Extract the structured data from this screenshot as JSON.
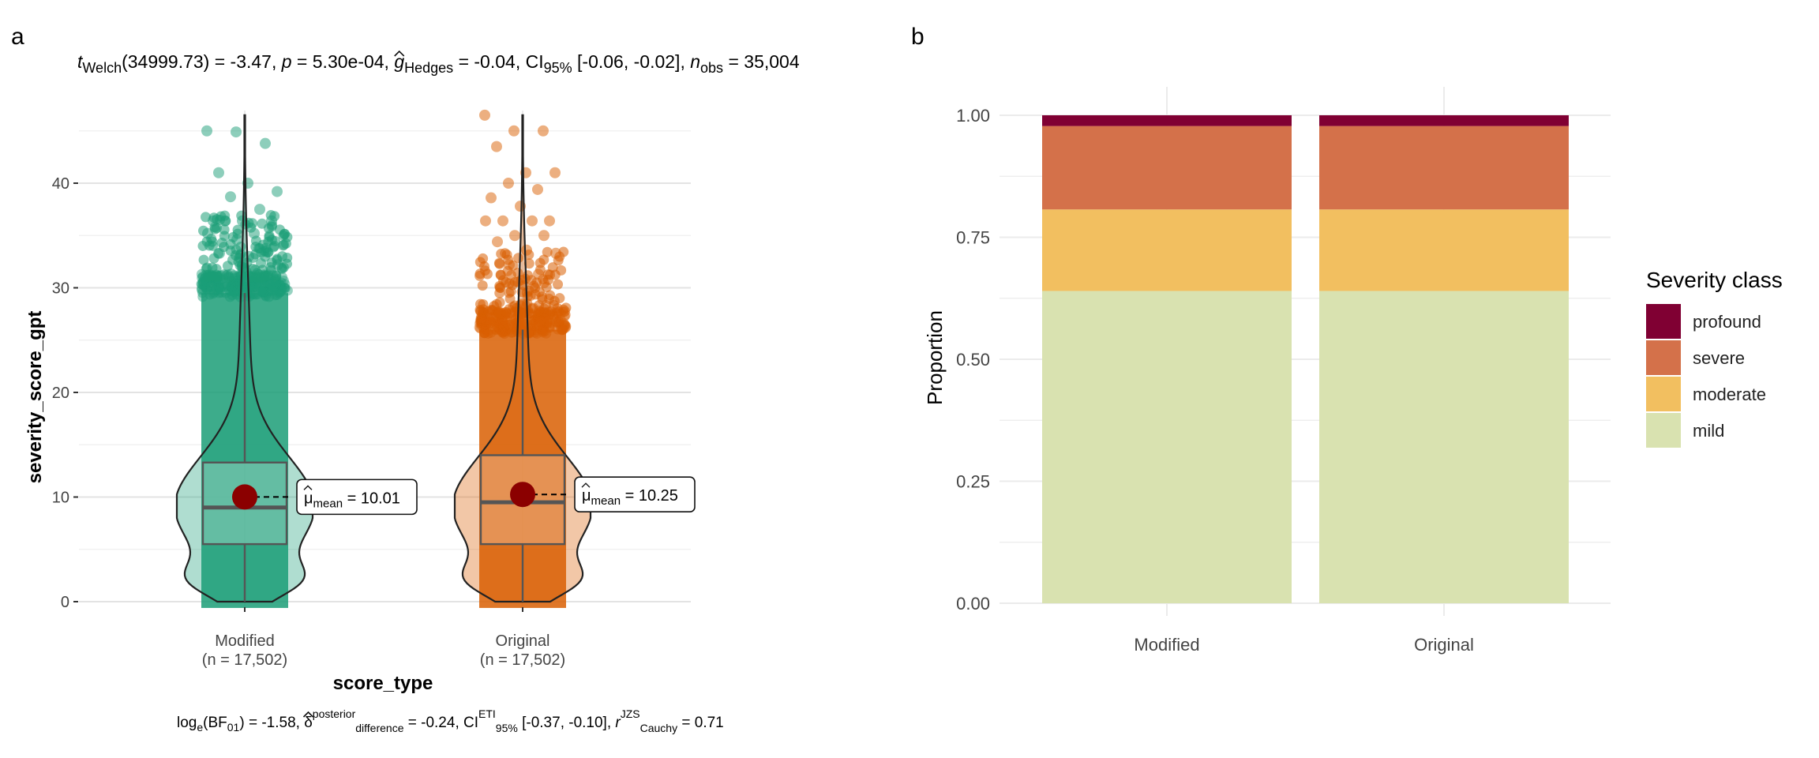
{
  "panel_a": {
    "letter": "a",
    "subtitle": {
      "t_label": "t",
      "t_sub": "Welch",
      "t_rest": "(34999.73) = -3.47, ",
      "p_label": "p",
      "p_rest": " = 5.30e-04, ",
      "g_label": "g",
      "g_sub": "Hedges",
      "g_rest": " = -0.04, CI",
      "ci_sub": "95%",
      "ci_rest": " [-0.06, -0.02], ",
      "n_label": "n",
      "n_sub": "obs",
      "n_rest": " = 35,004"
    },
    "caption": {
      "log_label": "log",
      "log_sub": "e",
      "log_rest1": "(BF",
      "log_sub2": "01",
      "log_rest2": ") = -1.58, ",
      "delta_label": "δ",
      "delta_sup": "posterior",
      "delta_sub": "difference",
      "delta_rest": " = -0.24, CI",
      "ci_sup": "ETI",
      "ci_sub": "95%",
      "ci_rest": " [-0.37, -0.10], ",
      "r_label": "r",
      "r_sup": "JZS",
      "r_sub": "Cauchy",
      "r_rest": " = 0.71"
    },
    "mean_label_sub": "mean",
    "colors": {
      "Modified": "#1b9e77",
      "Original": "#d95f02",
      "mean_point": "#8b0000"
    }
  },
  "panel_b": {
    "letter": "b",
    "legend_title": "Severity class",
    "colors": {
      "profound": "#800033",
      "severe": "#d4714a",
      "moderate": "#f2bf60",
      "mild": "#d9e2b0"
    }
  },
  "chart_data": [
    {
      "type": "violin-box-scatter",
      "xlabel": "score_type",
      "ylabel": "severity_score_gpt",
      "ylim": [
        -1,
        47.5
      ],
      "yticks": [
        0,
        10,
        20,
        30,
        40
      ],
      "grid": true,
      "categories": [
        "Modified",
        "Original"
      ],
      "category_counts": [
        "(n = 17,502)",
        "(n = 17,502)"
      ],
      "series": [
        {
          "name": "Modified",
          "min": 0,
          "q1": 5.5,
          "median": 9,
          "q3": 13.3,
          "whisker_high": 29.5,
          "max": 46.5,
          "mean": 10.01,
          "mean_label": "= 10.01"
        },
        {
          "name": "Original",
          "min": 0,
          "q1": 5.5,
          "median": 9.5,
          "q3": 14,
          "whisker_high": 26,
          "max": 46.5,
          "mean": 10.25,
          "mean_label": "= 10.25"
        }
      ],
      "outliers": {
        "Modified": [
          45,
          44.9,
          43.8,
          41,
          40,
          39.2,
          38.7,
          37.5,
          36.4,
          36.4,
          36.4,
          36.4,
          35.2,
          35.2,
          34.6,
          33.5,
          33.3,
          33,
          32.2,
          31.3
        ],
        "Original": [
          46.5,
          45,
          45,
          43.5,
          41,
          41,
          40,
          39.4,
          38.6,
          37.8,
          36.4,
          36.4,
          36.4,
          36.4,
          35,
          35,
          34.4,
          33.6,
          33.3,
          32.2,
          31.3
        ]
      }
    },
    {
      "type": "bar",
      "stacked": true,
      "xlabel": "",
      "ylabel": "Proportion",
      "ylim": [
        0,
        1
      ],
      "yticks": [
        "0.00",
        "0.25",
        "0.50",
        "0.75",
        "1.00"
      ],
      "grid": true,
      "legend_position": "right",
      "categories": [
        "Modified",
        "Original"
      ],
      "series": [
        {
          "name": "mild",
          "values": [
            0.64,
            0.64
          ]
        },
        {
          "name": "moderate",
          "values": [
            0.167,
            0.167
          ]
        },
        {
          "name": "severe",
          "values": [
            0.171,
            0.171
          ]
        },
        {
          "name": "profound",
          "values": [
            0.022,
            0.022
          ]
        }
      ],
      "legend_order": [
        "profound",
        "severe",
        "moderate",
        "mild"
      ]
    }
  ]
}
